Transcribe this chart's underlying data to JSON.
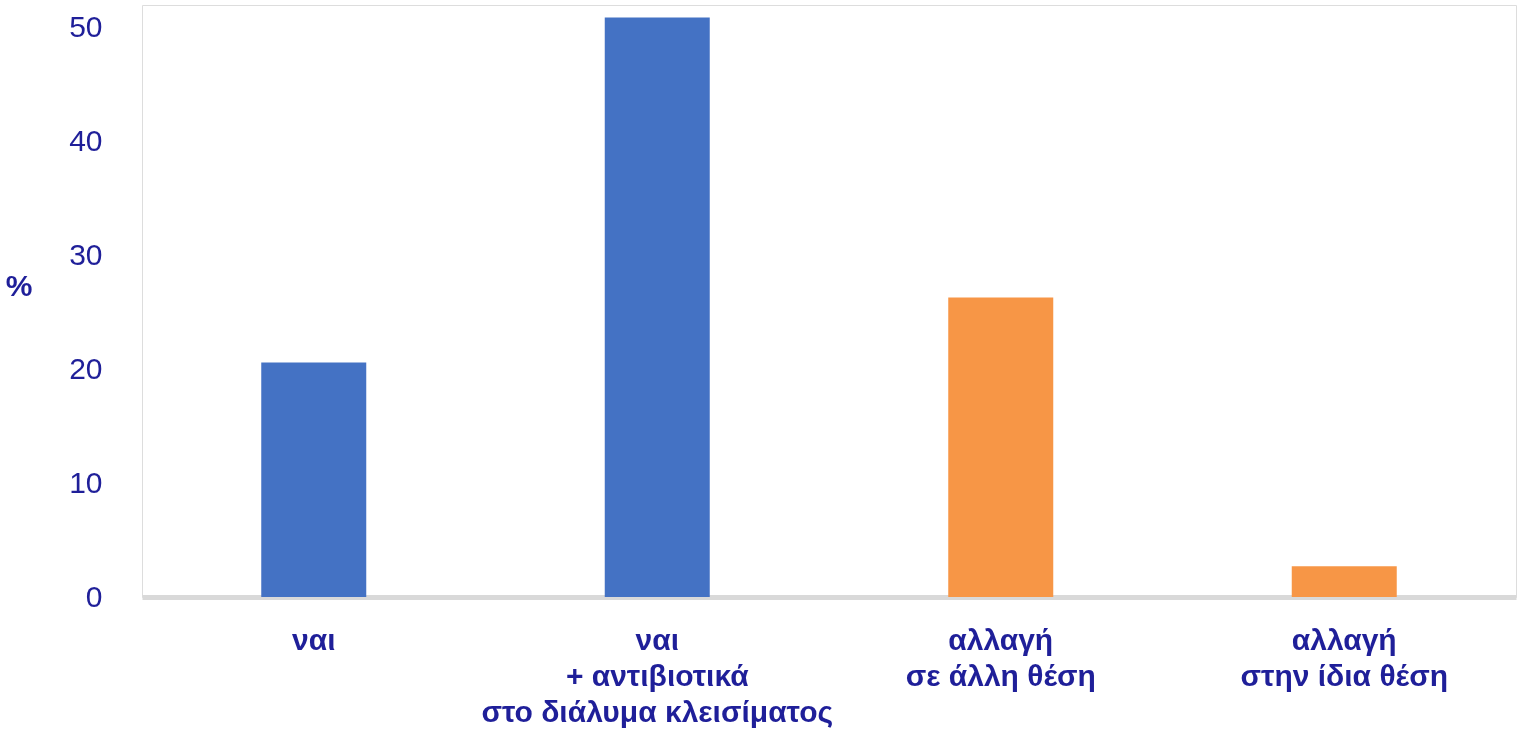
{
  "chart_data": {
    "type": "bar",
    "ylabel": "%",
    "categories": [
      "ναι",
      "ναι\n+ αντιβιοτικά\nστο διάλυμα κλεισίματος",
      "αλλαγή\nσε άλλη θέση",
      "αλλαγή\nστην ίδια θέση"
    ],
    "values": [
      20.6,
      50.9,
      26.3,
      2.7
    ],
    "colors": [
      "#4472c4",
      "#4472c4",
      "#f79646",
      "#f79646"
    ],
    "ylim": [
      0,
      52
    ],
    "yticks": [
      0,
      10,
      20,
      30,
      40,
      50
    ],
    "grid": false
  }
}
